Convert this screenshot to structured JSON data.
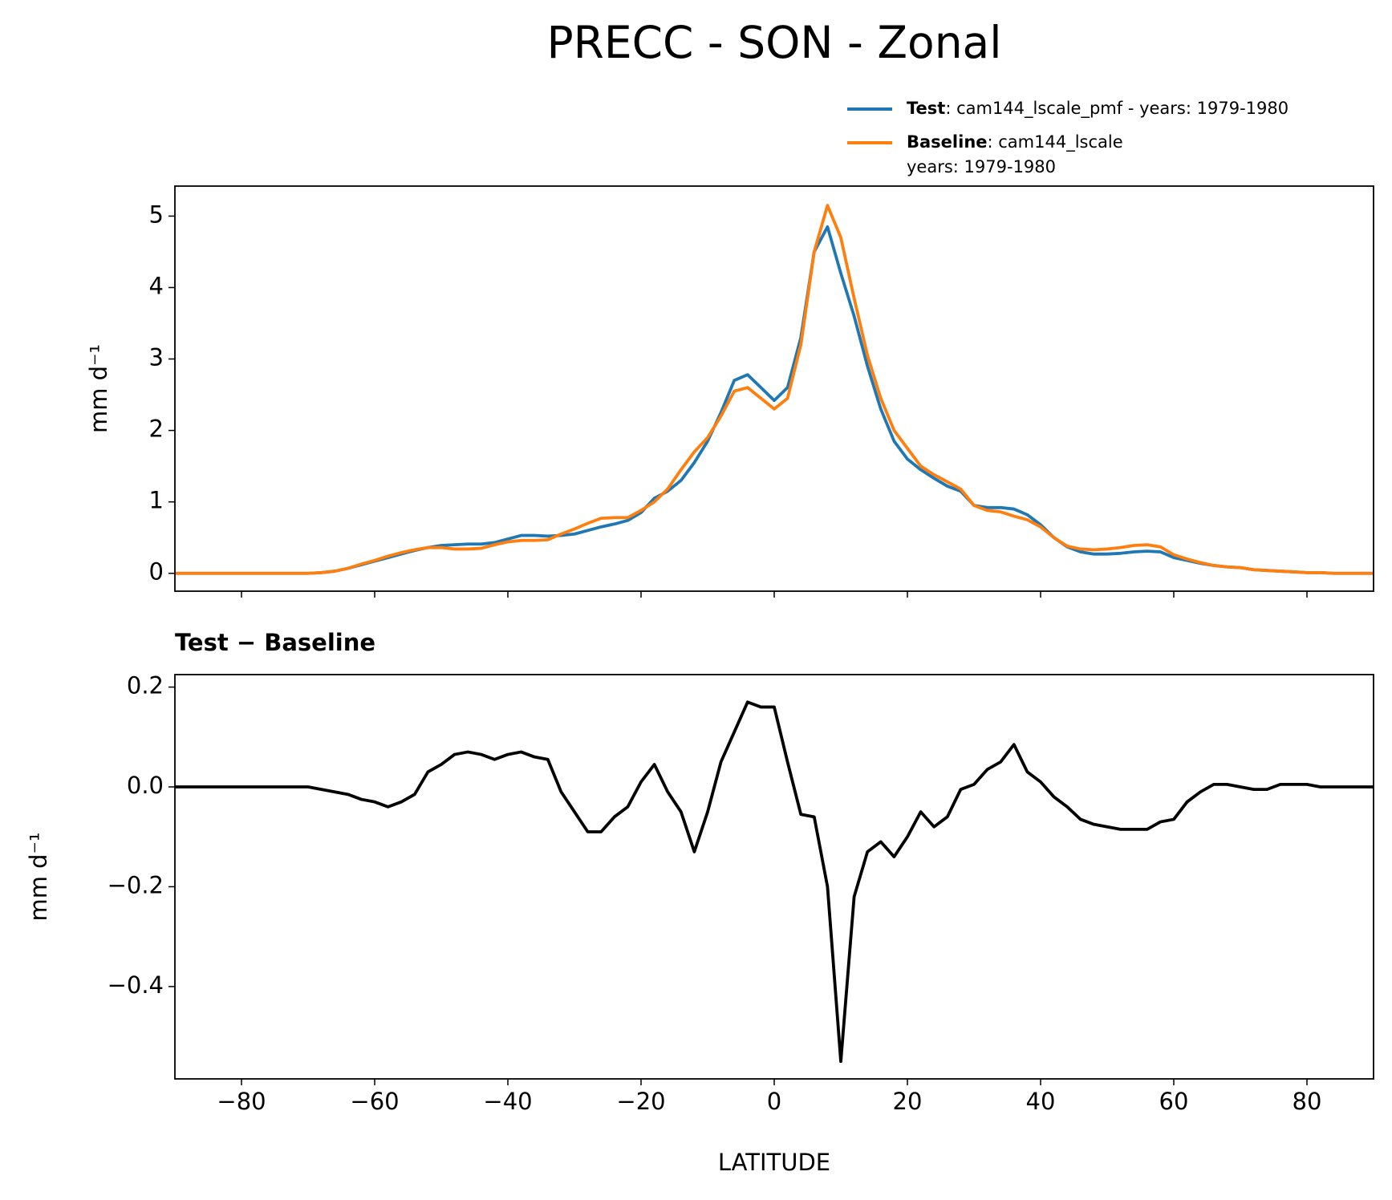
{
  "chart_data": [
    {
      "type": "line",
      "title": "PRECC - SON - Zonal",
      "ylabel": "mm d⁻¹",
      "x": [
        -90,
        -88,
        -86,
        -84,
        -82,
        -80,
        -78,
        -76,
        -74,
        -72,
        -70,
        -68,
        -66,
        -64,
        -62,
        -60,
        -58,
        -56,
        -54,
        -52,
        -50,
        -48,
        -46,
        -44,
        -42,
        -40,
        -38,
        -36,
        -34,
        -32,
        -30,
        -28,
        -26,
        -24,
        -22,
        -20,
        -18,
        -16,
        -14,
        -12,
        -10,
        -8,
        -6,
        -4,
        -2,
        0,
        2,
        4,
        6,
        8,
        10,
        12,
        14,
        16,
        18,
        20,
        22,
        24,
        26,
        28,
        30,
        32,
        34,
        36,
        38,
        40,
        42,
        44,
        46,
        48,
        50,
        52,
        54,
        56,
        58,
        60,
        62,
        64,
        66,
        68,
        70,
        72,
        74,
        76,
        78,
        80,
        82,
        84,
        86,
        88,
        90
      ],
      "series": [
        {
          "name": "Test",
          "label_lines": [
            ": cam144_lscale_pmf - years: 1979-1980"
          ],
          "color": "#1f77b4",
          "values": [
            0,
            0,
            0,
            0,
            0,
            0,
            0,
            0,
            0,
            0,
            0,
            0.01,
            0.03,
            0.07,
            0.12,
            0.17,
            0.22,
            0.27,
            0.32,
            0.36,
            0.39,
            0.4,
            0.41,
            0.41,
            0.43,
            0.48,
            0.53,
            0.53,
            0.52,
            0.53,
            0.55,
            0.6,
            0.65,
            0.69,
            0.74,
            0.85,
            1.05,
            1.15,
            1.3,
            1.55,
            1.85,
            2.25,
            2.7,
            2.78,
            2.6,
            2.42,
            2.6,
            3.3,
            4.5,
            4.85,
            4.2,
            3.6,
            2.9,
            2.3,
            1.85,
            1.6,
            1.45,
            1.33,
            1.22,
            1.15,
            0.95,
            0.92,
            0.92,
            0.9,
            0.82,
            0.68,
            0.5,
            0.37,
            0.3,
            0.27,
            0.27,
            0.28,
            0.3,
            0.31,
            0.3,
            0.22,
            0.18,
            0.14,
            0.11,
            0.09,
            0.08,
            0.05,
            0.04,
            0.03,
            0.02,
            0.01,
            0.01,
            0,
            0,
            0,
            0
          ]
        },
        {
          "name": "Baseline",
          "label_lines": [
            ": cam144_lscale",
            "years: 1979-1980"
          ],
          "color": "#ff7f0e",
          "values": [
            0,
            0,
            0,
            0,
            0,
            0,
            0,
            0,
            0,
            0,
            0,
            0.01,
            0.03,
            0.07,
            0.13,
            0.18,
            0.24,
            0.29,
            0.33,
            0.36,
            0.36,
            0.34,
            0.34,
            0.35,
            0.4,
            0.44,
            0.46,
            0.46,
            0.47,
            0.55,
            0.62,
            0.7,
            0.77,
            0.78,
            0.78,
            0.88,
            1.0,
            1.18,
            1.45,
            1.7,
            1.9,
            2.2,
            2.55,
            2.6,
            2.45,
            2.3,
            2.45,
            3.2,
            4.5,
            5.15,
            4.7,
            3.85,
            3.05,
            2.45,
            2.0,
            1.75,
            1.5,
            1.38,
            1.28,
            1.18,
            0.95,
            0.88,
            0.86,
            0.8,
            0.75,
            0.65,
            0.5,
            0.38,
            0.34,
            0.33,
            0.34,
            0.36,
            0.39,
            0.4,
            0.37,
            0.26,
            0.2,
            0.15,
            0.11,
            0.09,
            0.08,
            0.05,
            0.04,
            0.03,
            0.02,
            0.01,
            0.01,
            0,
            0,
            0,
            0
          ]
        }
      ],
      "xlim": [
        -90,
        90
      ],
      "xticks": [
        -80,
        -60,
        -40,
        -20,
        0,
        20,
        40,
        60,
        80
      ],
      "show_xtick_labels": false,
      "ylim": [
        -0.25,
        5.42
      ],
      "yticks": [
        0,
        1,
        2,
        3,
        4,
        5
      ],
      "legend": "upper right"
    },
    {
      "type": "line",
      "title": "Test − Baseline",
      "ylabel": "mm d⁻¹",
      "xlabel": "LATITUDE",
      "x": [
        -90,
        -88,
        -86,
        -84,
        -82,
        -80,
        -78,
        -76,
        -74,
        -72,
        -70,
        -68,
        -66,
        -64,
        -62,
        -60,
        -58,
        -56,
        -54,
        -52,
        -50,
        -48,
        -46,
        -44,
        -42,
        -40,
        -38,
        -36,
        -34,
        -32,
        -30,
        -28,
        -26,
        -24,
        -22,
        -20,
        -18,
        -16,
        -14,
        -12,
        -10,
        -8,
        -6,
        -4,
        -2,
        0,
        2,
        4,
        6,
        8,
        10,
        12,
        14,
        16,
        18,
        20,
        22,
        24,
        26,
        28,
        30,
        32,
        34,
        36,
        38,
        40,
        42,
        44,
        46,
        48,
        50,
        52,
        54,
        56,
        58,
        60,
        62,
        64,
        66,
        68,
        70,
        72,
        74,
        76,
        78,
        80,
        82,
        84,
        86,
        88,
        90
      ],
      "series": [
        {
          "color": "#000000",
          "values": [
            0,
            0,
            0,
            0,
            0,
            0,
            0,
            0,
            0,
            0,
            0,
            -0.005,
            -0.01,
            -0.015,
            -0.025,
            -0.03,
            -0.04,
            -0.03,
            -0.015,
            0.03,
            0.045,
            0.065,
            0.07,
            0.065,
            0.055,
            0.065,
            0.07,
            0.06,
            0.055,
            -0.01,
            -0.05,
            -0.09,
            -0.09,
            -0.06,
            -0.04,
            0.01,
            0.045,
            -0.01,
            -0.05,
            -0.13,
            -0.05,
            0.05,
            0.11,
            0.17,
            0.16,
            0.16,
            0.05,
            -0.055,
            -0.06,
            -0.2,
            -0.55,
            -0.22,
            -0.13,
            -0.11,
            -0.14,
            -0.1,
            -0.05,
            -0.08,
            -0.06,
            -0.005,
            0.005,
            0.035,
            0.05,
            0.085,
            0.03,
            0.01,
            -0.02,
            -0.04,
            -0.065,
            -0.075,
            -0.08,
            -0.085,
            -0.085,
            -0.085,
            -0.07,
            -0.065,
            -0.03,
            -0.01,
            0.005,
            0.005,
            0,
            -0.005,
            -0.005,
            0.005,
            0.005,
            0.005,
            0,
            0,
            0,
            0,
            0
          ]
        }
      ],
      "xlim": [
        -90,
        90
      ],
      "xticks": [
        {
          "value": -80,
          "label": "−80"
        },
        {
          "value": -60,
          "label": "−60"
        },
        {
          "value": -40,
          "label": "−40"
        },
        {
          "value": -20,
          "label": "−20"
        },
        0,
        20,
        40,
        60,
        80
      ],
      "show_xtick_labels": true,
      "ylim": [
        -0.585,
        0.225
      ],
      "yticks": [
        {
          "value": -0.4,
          "label": "−0.4"
        },
        {
          "value": -0.2,
          "label": "−0.2"
        },
        {
          "value": 0,
          "label": "0.0"
        },
        0.2
      ]
    }
  ]
}
